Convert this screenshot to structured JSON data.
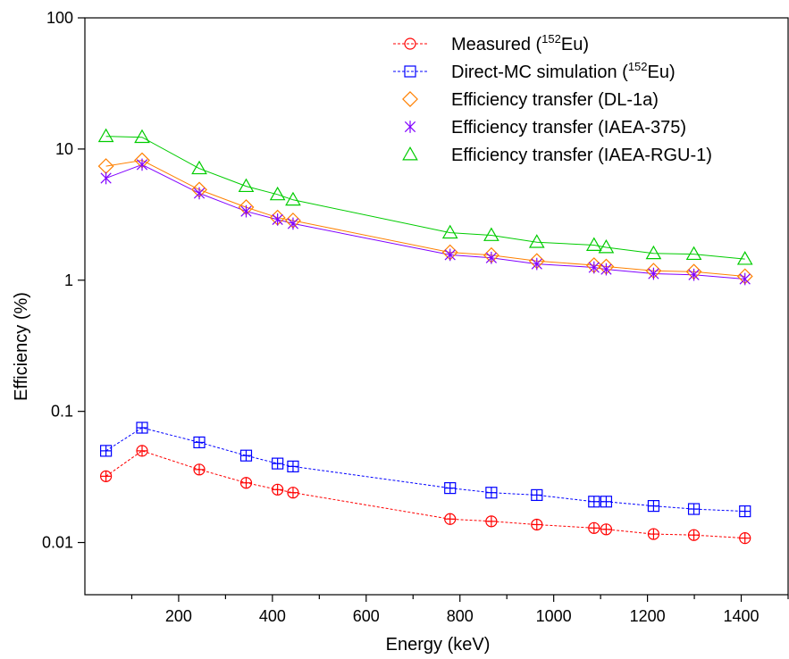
{
  "chart_data": {
    "type": "line",
    "xlabel": "Energy (keV)",
    "ylabel": "Efficiency (%)",
    "xlim": [
      0,
      1500
    ],
    "ylim": [
      0.004,
      100
    ],
    "yscale": "log",
    "x_ticks": [
      200,
      400,
      600,
      800,
      1000,
      1200,
      1400
    ],
    "x_minor_ticks": [
      100,
      300,
      500,
      700,
      900,
      1100,
      1300,
      1500
    ],
    "y_ticks": [
      0.01,
      0.1,
      1,
      10,
      100
    ],
    "y_tick_labels": [
      "0.01",
      "0.1",
      "1",
      "10",
      "100"
    ],
    "grid": false,
    "legend_position": "top-right",
    "x": [
      45,
      122,
      244,
      344,
      411,
      444,
      779,
      867,
      964,
      1086,
      1112,
      1213,
      1299,
      1408
    ],
    "series": [
      {
        "name_parts": [
          "Measured (",
          "152",
          "Eu)"
        ],
        "color": "#ff0000",
        "marker": "circle-plus",
        "line": "dashed",
        "values": [
          0.032,
          0.05,
          0.036,
          0.0285,
          0.0253,
          0.024,
          0.0151,
          0.0145,
          0.0137,
          0.0129,
          0.0126,
          0.0116,
          0.0114,
          0.0108
        ]
      },
      {
        "name_parts": [
          "Direct-MC simulation (",
          "152",
          "Eu)"
        ],
        "color": "#0000ff",
        "marker": "square-plus",
        "line": "dashed",
        "values": [
          0.05,
          0.075,
          0.058,
          0.046,
          0.04,
          0.038,
          0.026,
          0.024,
          0.023,
          0.0205,
          0.0205,
          0.019,
          0.018,
          0.0173
        ]
      },
      {
        "name_parts": [
          "Efficiency transfer (DL-1a)"
        ],
        "color": "#ff8000",
        "marker": "diamond",
        "line": "solid",
        "values": [
          7.4,
          8.2,
          4.9,
          3.6,
          3.0,
          2.85,
          1.63,
          1.55,
          1.4,
          1.3,
          1.27,
          1.18,
          1.16,
          1.07
        ]
      },
      {
        "name_parts": [
          "Efficiency transfer (IAEA-375)"
        ],
        "color": "#8000ff",
        "marker": "star",
        "line": "solid",
        "values": [
          6.0,
          7.6,
          4.6,
          3.35,
          2.9,
          2.7,
          1.56,
          1.48,
          1.33,
          1.25,
          1.21,
          1.12,
          1.1,
          1.02
        ]
      },
      {
        "name_parts": [
          "Efficiency transfer (IAEA-RGU-1)"
        ],
        "color": "#00cc00",
        "marker": "triangle",
        "line": "solid",
        "values": [
          12.5,
          12.3,
          7.1,
          5.2,
          4.5,
          4.1,
          2.3,
          2.2,
          1.95,
          1.85,
          1.78,
          1.6,
          1.58,
          1.45
        ]
      }
    ]
  }
}
